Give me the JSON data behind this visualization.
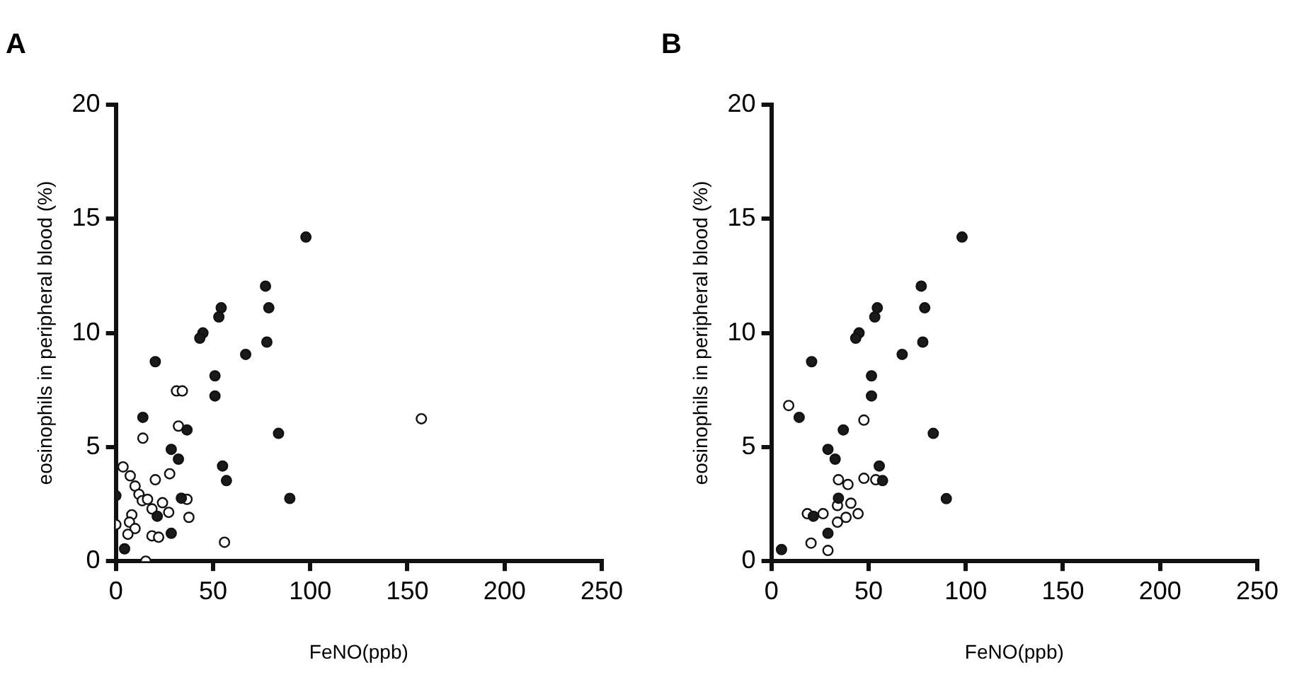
{
  "chart_data": [
    {
      "type": "scatter",
      "title": "A",
      "xlabel": "FeNO(ppb)",
      "ylabel": "eosinophils in peripheral blood (%)",
      "xlim": [
        0,
        250
      ],
      "xticks": [
        0,
        50,
        100,
        150,
        200,
        250
      ],
      "ylim": [
        0,
        20
      ],
      "yticks": [
        0,
        5,
        10,
        15,
        20
      ],
      "grid": false,
      "legend": false,
      "marker": "circle",
      "series": [
        {
          "color": "#1a1a1a",
          "x": [
            77,
            78.7,
            77.7,
            66.8,
            54.2,
            53,
            44.8,
            43.2,
            20.3,
            51,
            51,
            13.9,
            36.6,
            83.7,
            28.5,
            32.2,
            54.9,
            56.9,
            33.7,
            89.5,
            97.8,
            21.3,
            28.5,
            4.5,
            0
          ],
          "values": [
            12.05,
            11.1,
            9.6,
            9.06,
            11.1,
            10.7,
            10,
            9.77,
            8.74,
            8.12,
            7.24,
            6.3,
            5.75,
            5.6,
            4.9,
            4.47,
            4.17,
            3.53,
            2.76,
            2.75,
            14.2,
            1.97,
            1.22,
            0.54,
            2.87
          ]
        },
        {
          "color": "#ffffff",
          "x": [
            31.2,
            34.2,
            13.9,
            32.2,
            3.7,
            7.4,
            20.3,
            27.7,
            9.9,
            11.9,
            13.6,
            16.3,
            24,
            18.6,
            27.2,
            36.6,
            37.6,
            8.2,
            7,
            9.9,
            6.2,
            18.6,
            22,
            0,
            15.4,
            55.9,
            157.2
          ],
          "values": [
            7.46,
            7.46,
            5.39,
            5.92,
            4.13,
            3.74,
            3.57,
            3.83,
            3.29,
            2.93,
            2.65,
            2.71,
            2.56,
            2.29,
            2.14,
            2.71,
            1.92,
            2.03,
            1.71,
            1.43,
            1.18,
            1.11,
            1.05,
            1.6,
            0,
            0.83,
            6.24
          ]
        }
      ]
    },
    {
      "type": "scatter",
      "title": "B",
      "xlabel": "FeNO(ppb)",
      "ylabel": "eosinophils in peripheral blood (%)",
      "xlim": [
        0,
        250
      ],
      "xticks": [
        0,
        50,
        100,
        150,
        200,
        250
      ],
      "ylim": [
        0,
        20
      ],
      "yticks": [
        0,
        5,
        10,
        15,
        20
      ],
      "grid": false,
      "legend": false,
      "marker": "circle",
      "series": [
        {
          "color": "#1a1a1a",
          "x": [
            77.1,
            78.9,
            77.9,
            67.3,
            54.5,
            53.2,
            45.1,
            43.4,
            20.7,
            51.5,
            51.5,
            14.3,
            37,
            83.3,
            29.1,
            32.8,
            55.5,
            57.2,
            34.5,
            90,
            98.1,
            21.6,
            29.1,
            5.2
          ],
          "values": [
            12.05,
            11.1,
            9.6,
            9.06,
            11.1,
            10.7,
            10,
            9.77,
            8.74,
            8.12,
            7.24,
            6.3,
            5.75,
            5.6,
            4.9,
            4.47,
            4.17,
            3.53,
            2.76,
            2.74,
            14.2,
            1.97,
            1.22,
            0.51
          ]
        },
        {
          "color": "#ffffff",
          "x": [
            8.9,
            47.6,
            34.5,
            39.4,
            47.6,
            53.7,
            34,
            40.9,
            18.5,
            26.6,
            38.4,
            44.6,
            34,
            20.4,
            29.1
          ],
          "values": [
            6.82,
            6.18,
            3.57,
            3.36,
            3.63,
            3.57,
            2.44,
            2.54,
            2.08,
            2.08,
            1.92,
            2.08,
            1.71,
            0.79,
            0.47
          ]
        }
      ]
    }
  ]
}
